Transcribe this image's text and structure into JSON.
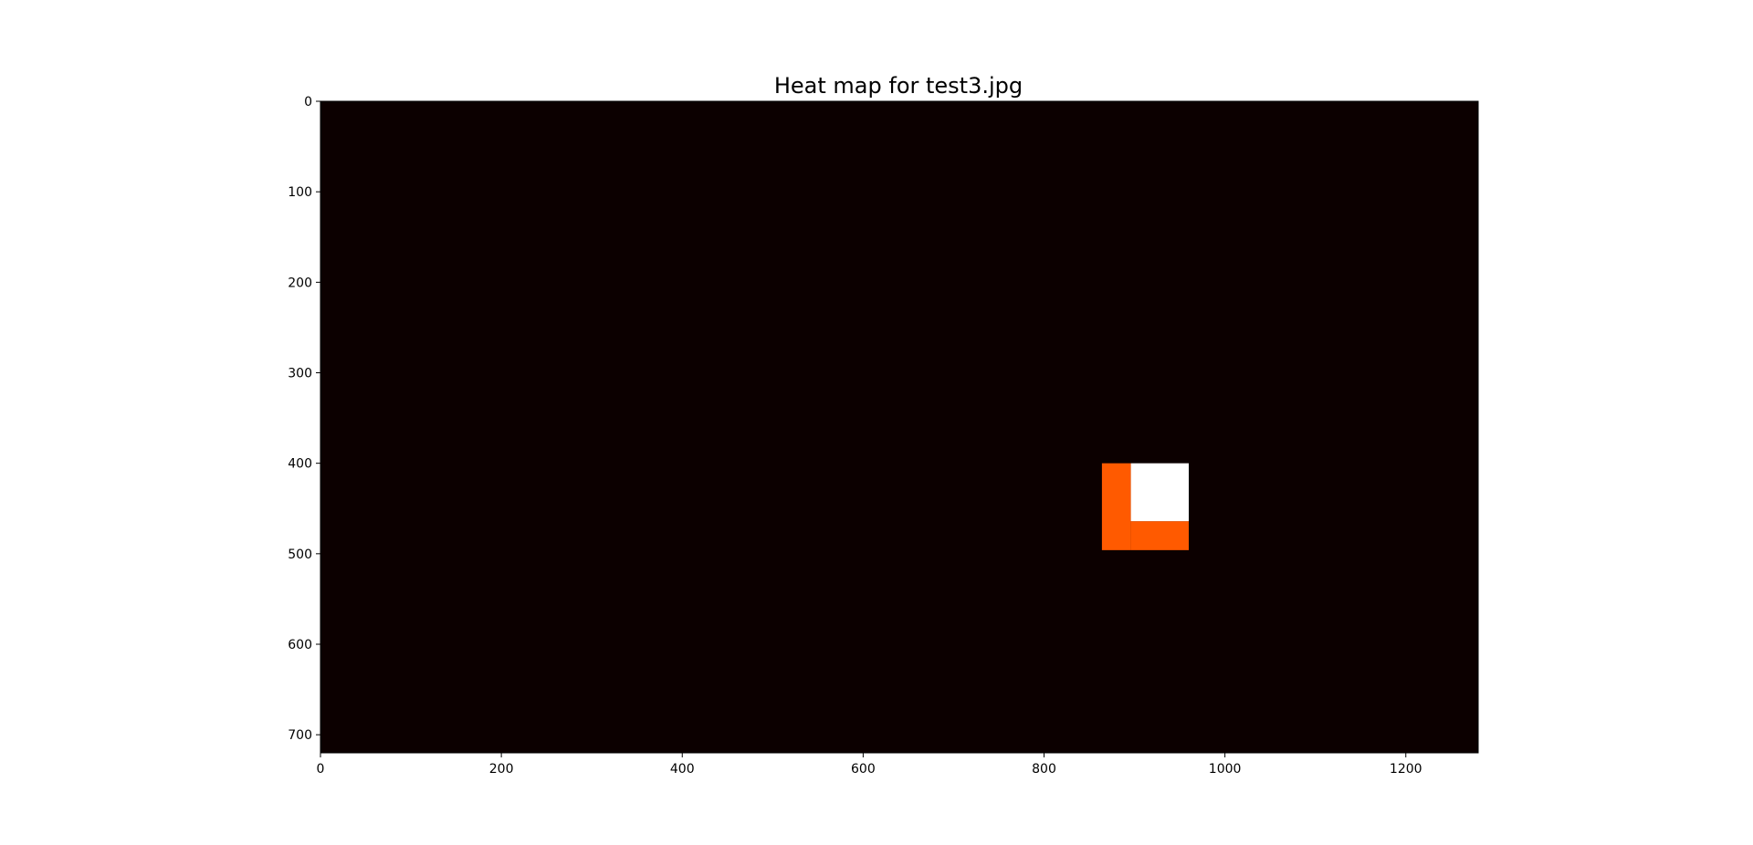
{
  "chart_data": {
    "type": "heatmap",
    "title": "Heat map for test3.jpg",
    "xlabel": "",
    "ylabel": "",
    "xlim": [
      0,
      1280
    ],
    "ylim": [
      720,
      0
    ],
    "x_ticks": [
      0,
      200,
      400,
      600,
      800,
      1000,
      1200
    ],
    "y_ticks": [
      0,
      100,
      200,
      300,
      400,
      500,
      600,
      700
    ],
    "grid": false,
    "colormap": "hot",
    "background_color": "#0c0000",
    "cells": [
      {
        "x": [
          864,
          896
        ],
        "y": [
          400,
          496
        ],
        "level": 0.6,
        "color": "#ff5a00"
      },
      {
        "x": [
          896,
          960
        ],
        "y": [
          464,
          496
        ],
        "level": 0.6,
        "color": "#ff5a00"
      },
      {
        "x": [
          896,
          960
        ],
        "y": [
          400,
          464
        ],
        "level": 1.0,
        "color": "#ffffff"
      }
    ]
  }
}
